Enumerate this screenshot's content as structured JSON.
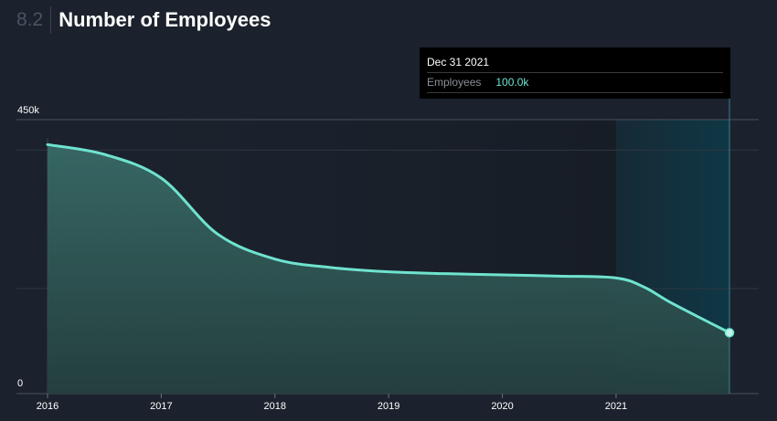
{
  "header": {
    "section_number": "8.2",
    "title": "Number of Employees"
  },
  "tooltip": {
    "date": "Dec 31 2021",
    "label": "Employees",
    "value": "100.0k"
  },
  "colors": {
    "background": "#1b222d",
    "line": "#6fe3cf",
    "area_fill": "#2f5a57",
    "highlight": "#0e3846"
  },
  "chart_data": {
    "type": "area",
    "title": "Number of Employees",
    "xlabel": "",
    "ylabel": "",
    "x_ticks": [
      "2016",
      "2017",
      "2018",
      "2019",
      "2020",
      "2021"
    ],
    "y_ticks": [
      "450k",
      "0"
    ],
    "ylim": [
      0,
      450000
    ],
    "grid": true,
    "highlighted_range": [
      "2021-01-01",
      "2021-12-31"
    ],
    "series": [
      {
        "values": [
          {
            "x": "2016-01-01",
            "y": 409000
          },
          {
            "x": "2016-07-01",
            "y": 393000
          },
          {
            "x": "2017-01-01",
            "y": 354000
          },
          {
            "x": "2017-07-01",
            "y": 262000
          },
          {
            "x": "2018-01-01",
            "y": 221000
          },
          {
            "x": "2018-07-01",
            "y": 207000
          },
          {
            "x": "2019-01-01",
            "y": 200000
          },
          {
            "x": "2019-07-01",
            "y": 197000
          },
          {
            "x": "2020-01-01",
            "y": 195000
          },
          {
            "x": "2020-07-01",
            "y": 193000
          },
          {
            "x": "2021-01-01",
            "y": 190000
          },
          {
            "x": "2021-04-01",
            "y": 175000
          },
          {
            "x": "2021-07-01",
            "y": 148000
          },
          {
            "x": "2021-12-31",
            "y": 100000
          }
        ]
      }
    ]
  }
}
